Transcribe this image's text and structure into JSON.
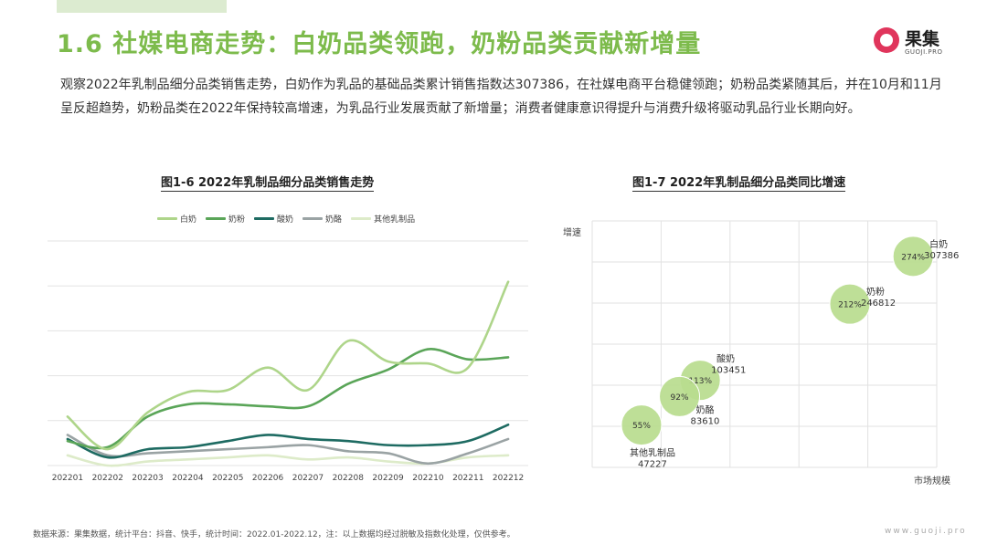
{
  "header": {
    "title": "1.6 社媒电商走势：白奶品类领跑，奶粉品类贡献新增量",
    "logo_text": "果集",
    "logo_subtext": "GUOJI.PRO"
  },
  "intro": "观察2022年乳制品细分品类销售走势，白奶作为乳品的基础品类累计销售指数达307386，在社媒电商平台稳健领跑；奶粉品类紧随其后，并在10月和11月呈反超趋势，奶粉品类在2022年保持较高增速，为乳品行业发展贡献了新增量；消费者健康意识得提升与消费升级将驱动乳品行业长期向好。",
  "colors": {
    "title_green": "#7dbb4c",
    "logo_red": "#e0355c"
  },
  "chart_data": [
    {
      "type": "line",
      "title": "图1-6 2022年乳制品细分品类销售走势",
      "x": [
        "202201",
        "202202",
        "202203",
        "202204",
        "202205",
        "202206",
        "202207",
        "202208",
        "202209",
        "202210",
        "202211",
        "202212"
      ],
      "ylim": [
        0,
        110
      ],
      "grid": true,
      "legend_position": "top",
      "series": [
        {
          "name": "白奶",
          "color": "#aed58a",
          "values": [
            24,
            8,
            26,
            36,
            37,
            48,
            37,
            61,
            51,
            50,
            48,
            90
          ]
        },
        {
          "name": "奶粉",
          "color": "#5aa558",
          "values": [
            12,
            9,
            24,
            30,
            30,
            29,
            29,
            40,
            47,
            57,
            52,
            53
          ]
        },
        {
          "name": "酸奶",
          "color": "#1e6b62",
          "values": [
            13,
            4,
            8,
            9,
            12,
            15,
            13,
            12,
            10,
            10,
            12,
            20
          ]
        },
        {
          "name": "奶酪",
          "color": "#9aa3a4",
          "values": [
            15,
            5,
            6,
            7,
            8,
            9,
            10,
            7,
            6,
            1,
            6,
            13
          ]
        },
        {
          "name": "其他乳制品",
          "color": "#ddebc9",
          "values": [
            5,
            0,
            2,
            3,
            4,
            5,
            3,
            4,
            2,
            1,
            4,
            5
          ]
        }
      ]
    },
    {
      "type": "scatter",
      "title": "图1-7 2022年乳制品细分品类同比增速",
      "xlabel": "市场规模",
      "ylabel": "增速",
      "grid": true,
      "bubble_color": "#b9dc8e",
      "points": [
        {
          "name": "白奶",
          "x": 307386,
          "y": 274,
          "label": "274%"
        },
        {
          "name": "奶粉",
          "x": 246812,
          "y": 212,
          "label": "212%"
        },
        {
          "name": "酸奶",
          "x": 103451,
          "y": 113,
          "label": "113%"
        },
        {
          "name": "奶酪",
          "x": 83610,
          "y": 92,
          "label": "92%"
        },
        {
          "name": "其他乳制品",
          "x": 47227,
          "y": 55,
          "label": "55%"
        }
      ]
    }
  ],
  "footer": {
    "source": "数据来源：果集数据，统计平台：抖音、快手，统计时间：2022.01-2022.12，注：以上数据均经过脱敏及指数化处理，仅供参考。",
    "site": "www.guoji.pro"
  }
}
